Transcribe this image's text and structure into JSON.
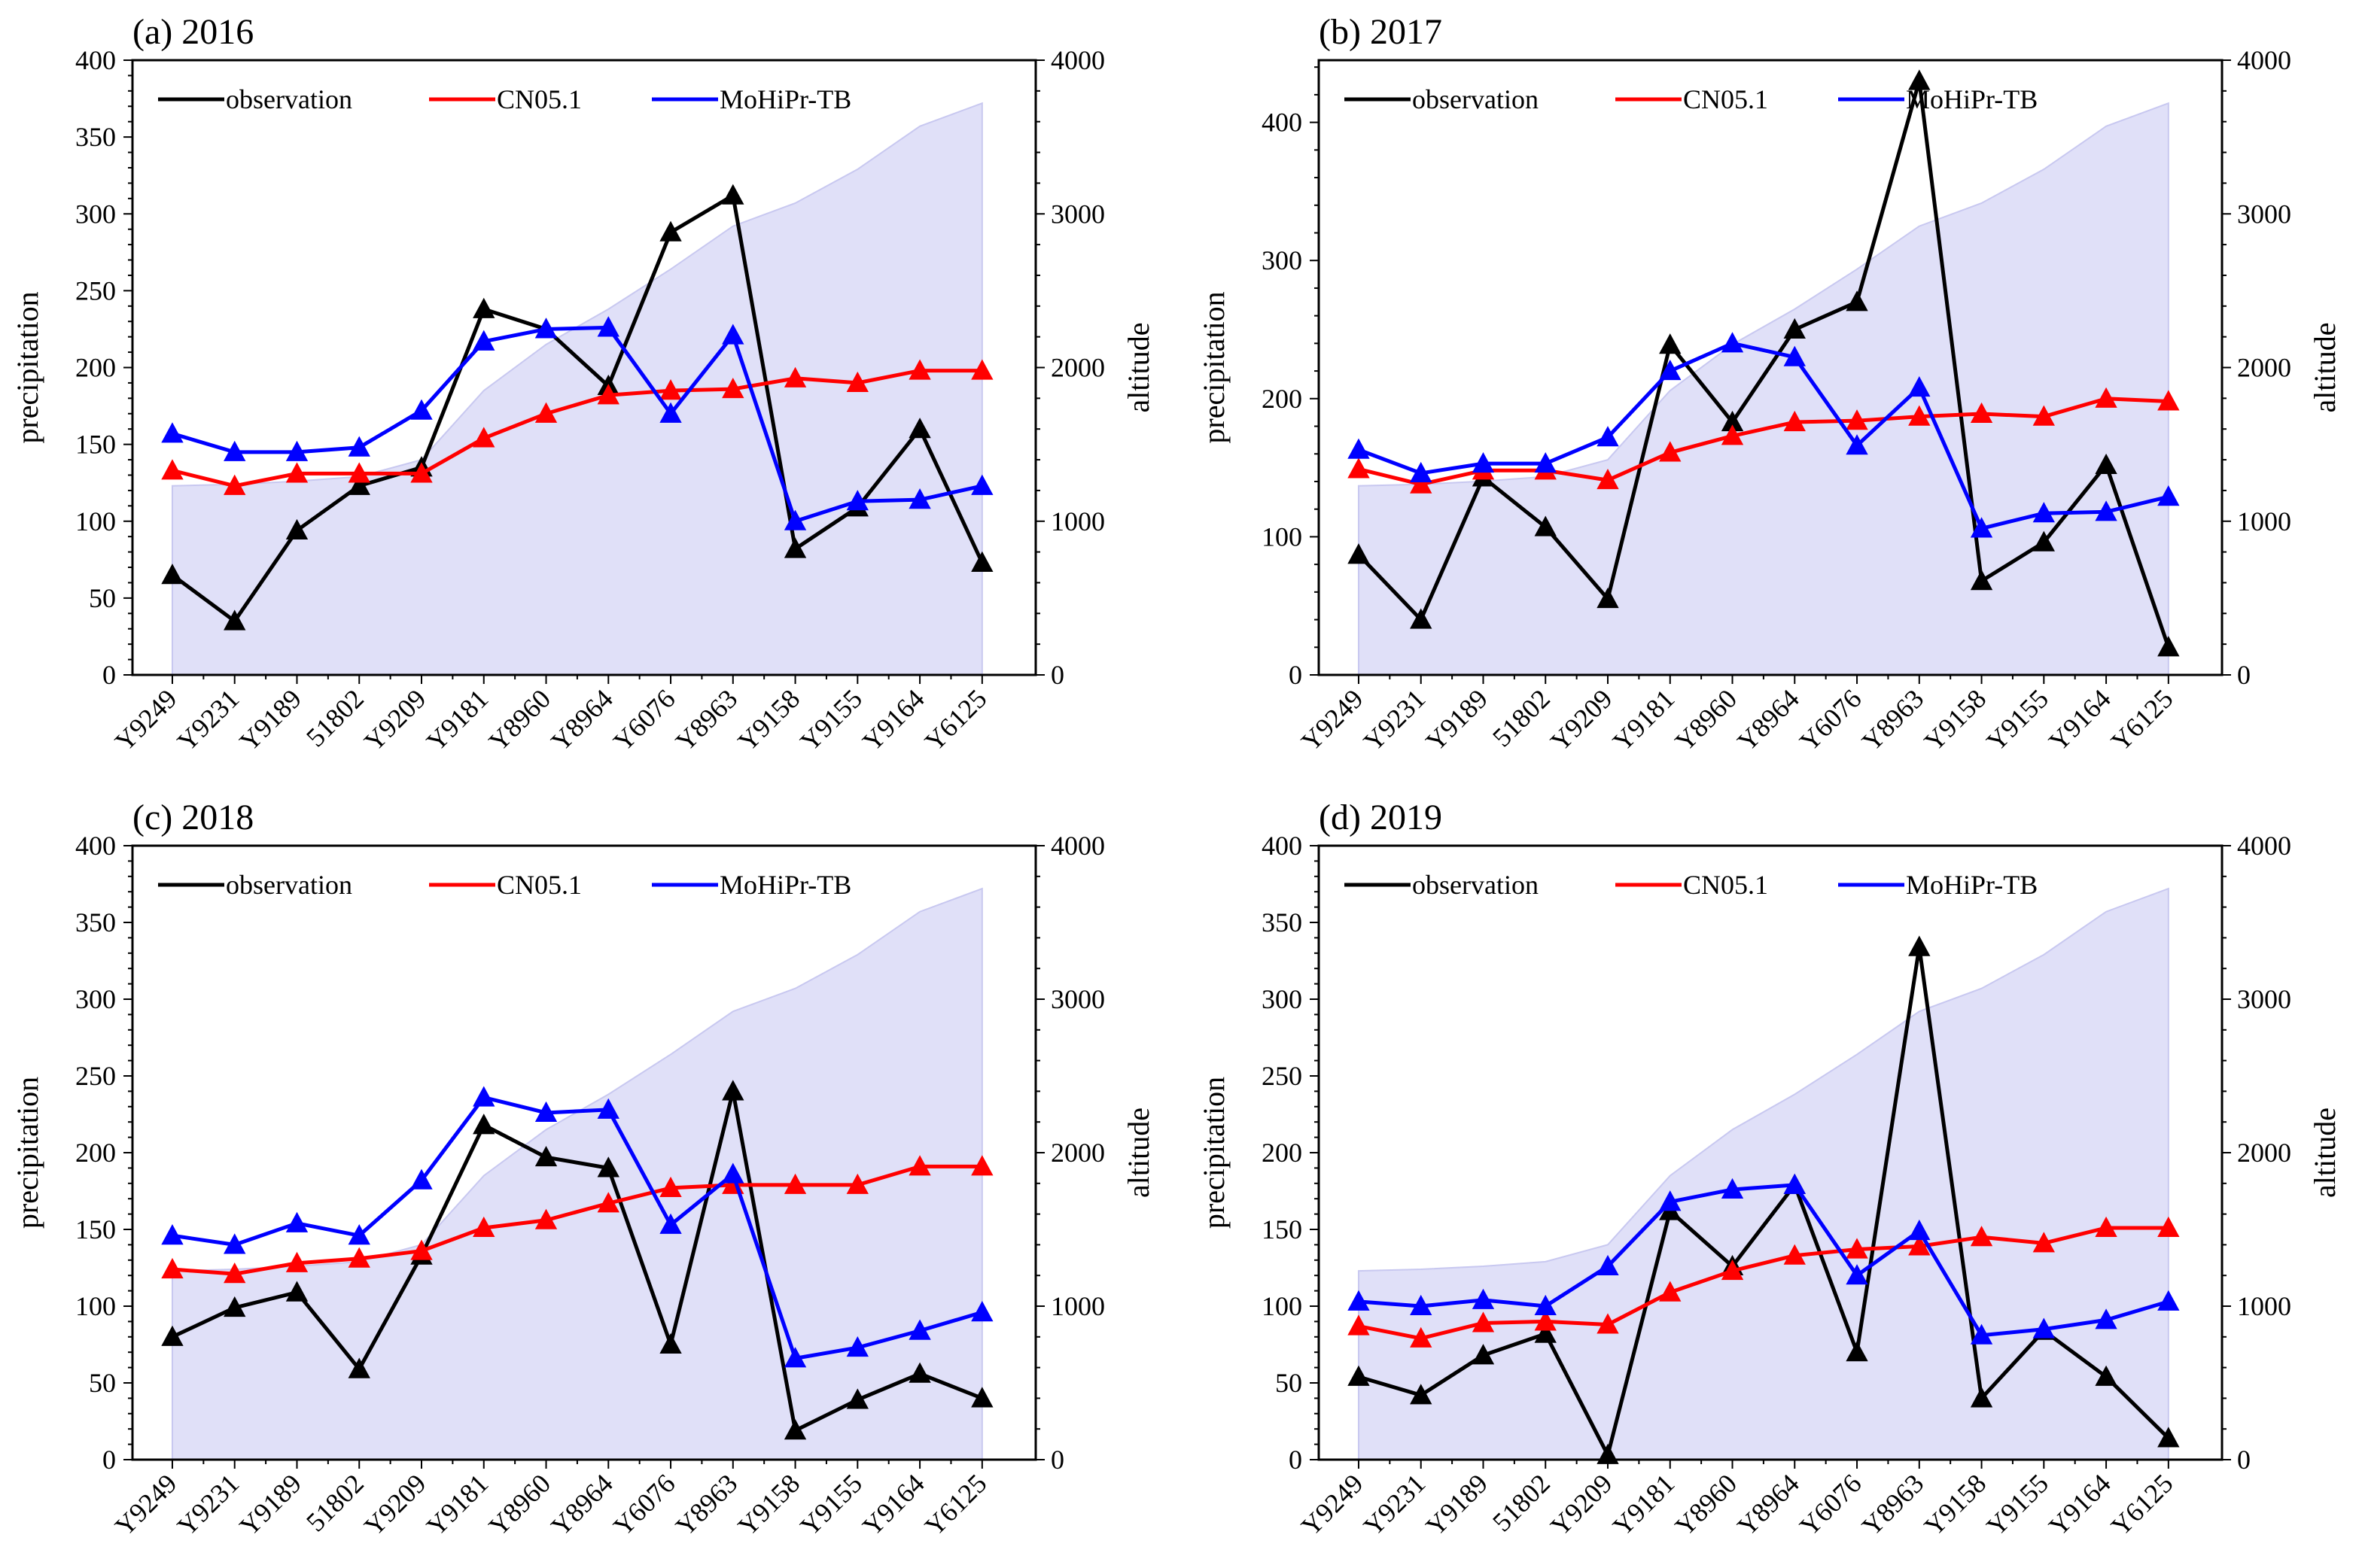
{
  "chart_data": [
    {
      "type": "line",
      "title": "(a) 2016",
      "ylabel": "precipitation",
      "y2label": "altitude",
      "ylim": [
        0,
        400
      ],
      "y2lim": [
        0,
        4000
      ],
      "yticks": [
        "0",
        "50",
        "100",
        "150",
        "200",
        "250",
        "300",
        "350",
        "400"
      ],
      "y2ticks": [
        "0",
        "1000",
        "2000",
        "3000",
        "4000"
      ],
      "categories": [
        "Y9249",
        "Y9231",
        "Y9189",
        "51802",
        "Y9209",
        "Y9181",
        "Y8960",
        "Y8964",
        "Y6076",
        "Y8963",
        "Y9158",
        "Y9155",
        "Y9164",
        "Y6125"
      ],
      "altitude": [
        1230,
        1240,
        1260,
        1290,
        1400,
        1850,
        2150,
        2380,
        2640,
        2920,
        3070,
        3290,
        3570,
        3720
      ],
      "altitude_color": "#e0e0f8",
      "series": [
        {
          "name": "observation",
          "color": "#000000",
          "values": [
            65,
            35,
            94,
            123,
            135,
            238,
            225,
            188,
            288,
            312,
            82,
            109,
            160,
            73
          ]
        },
        {
          "name": "CN05.1",
          "color": "#ff0000",
          "values": [
            133,
            123,
            131,
            131,
            131,
            154,
            170,
            182,
            185,
            186,
            193,
            190,
            198,
            198
          ]
        },
        {
          "name": "MoHiPr-TB",
          "color": "#0000ff",
          "values": [
            157,
            145,
            145,
            148,
            172,
            217,
            225,
            226,
            170,
            221,
            100,
            113,
            114,
            123
          ]
        }
      ]
    },
    {
      "type": "line",
      "title": "(b) 2017",
      "ylabel": "precipitation",
      "y2label": "altitude",
      "ylim": [
        0,
        445
      ],
      "y2lim": [
        0,
        4000
      ],
      "yticks": [
        "0",
        "100",
        "200",
        "300",
        "400"
      ],
      "y2ticks": [
        "0",
        "1000",
        "2000",
        "3000",
        "4000"
      ],
      "categories": [
        "Y9249",
        "Y9231",
        "Y9189",
        "51802",
        "Y9209",
        "Y9181",
        "Y8960",
        "Y8964",
        "Y6076",
        "Y8963",
        "Y9158",
        "Y9155",
        "Y9164",
        "Y6125"
      ],
      "altitude": [
        1230,
        1240,
        1260,
        1290,
        1400,
        1850,
        2150,
        2380,
        2640,
        2920,
        3070,
        3290,
        3570,
        3720
      ],
      "altitude_color": "#e0e0f8",
      "series": [
        {
          "name": "observation",
          "color": "#000000",
          "values": [
            87,
            40,
            143,
            107,
            55,
            239,
            183,
            250,
            270,
            430,
            68,
            96,
            152,
            20
          ]
        },
        {
          "name": "CN05.1",
          "color": "#ff0000",
          "values": [
            149,
            138,
            148,
            148,
            141,
            161,
            173,
            183,
            184,
            187,
            189,
            187,
            200,
            198
          ]
        },
        {
          "name": "MoHiPr-TB",
          "color": "#0000ff",
          "values": [
            163,
            146,
            153,
            153,
            172,
            220,
            240,
            230,
            166,
            208,
            106,
            117,
            118,
            129
          ]
        }
      ]
    },
    {
      "type": "line",
      "title": "(c) 2018",
      "ylabel": "precipitation",
      "y2label": "altitude",
      "ylim": [
        0,
        400
      ],
      "y2lim": [
        0,
        4000
      ],
      "yticks": [
        "0",
        "50",
        "100",
        "150",
        "200",
        "250",
        "300",
        "350",
        "400"
      ],
      "y2ticks": [
        "0",
        "1000",
        "2000",
        "3000",
        "4000"
      ],
      "categories": [
        "Y9249",
        "Y9231",
        "Y9189",
        "51802",
        "Y9209",
        "Y9181",
        "Y8960",
        "Y8964",
        "Y6076",
        "Y8963",
        "Y9158",
        "Y9155",
        "Y9164",
        "Y6125"
      ],
      "altitude": [
        1230,
        1240,
        1260,
        1290,
        1400,
        1850,
        2150,
        2380,
        2640,
        2920,
        3070,
        3290,
        3570,
        3720
      ],
      "altitude_color": "#e0e0f8",
      "series": [
        {
          "name": "observation",
          "color": "#000000",
          "values": [
            80,
            99,
            109,
            59,
            133,
            218,
            197,
            190,
            75,
            240,
            19,
            39,
            56,
            40
          ]
        },
        {
          "name": "CN05.1",
          "color": "#ff0000",
          "values": [
            124,
            121,
            128,
            131,
            136,
            151,
            156,
            167,
            177,
            179,
            179,
            179,
            191,
            191
          ]
        },
        {
          "name": "MoHiPr-TB",
          "color": "#0000ff",
          "values": [
            146,
            140,
            154,
            146,
            182,
            236,
            226,
            228,
            153,
            186,
            66,
            73,
            84,
            96
          ]
        }
      ]
    },
    {
      "type": "line",
      "title": "(d) 2019",
      "ylabel": "precipitation",
      "y2label": "altitude",
      "ylim": [
        0,
        400
      ],
      "y2lim": [
        0,
        4000
      ],
      "yticks": [
        "0",
        "50",
        "100",
        "150",
        "200",
        "250",
        "300",
        "350",
        "400"
      ],
      "y2ticks": [
        "0",
        "1000",
        "2000",
        "3000",
        "4000"
      ],
      "categories": [
        "Y9249",
        "Y9231",
        "Y9189",
        "51802",
        "Y9209",
        "Y9181",
        "Y8960",
        "Y8964",
        "Y6076",
        "Y8963",
        "Y9158",
        "Y9155",
        "Y9164",
        "Y6125"
      ],
      "altitude": [
        1230,
        1240,
        1260,
        1290,
        1400,
        1850,
        2150,
        2380,
        2640,
        2920,
        3070,
        3290,
        3570,
        3720
      ],
      "altitude_color": "#e0e0f8",
      "series": [
        {
          "name": "observation",
          "color": "#000000",
          "values": [
            54,
            42,
            68,
            82,
            3,
            162,
            126,
            179,
            70,
            334,
            40,
            84,
            54,
            14
          ]
        },
        {
          "name": "CN05.1",
          "color": "#ff0000",
          "values": [
            87,
            79,
            89,
            90,
            88,
            109,
            123,
            133,
            137,
            139,
            145,
            141,
            151,
            151
          ]
        },
        {
          "name": "MoHiPr-TB",
          "color": "#0000ff",
          "values": [
            103,
            100,
            104,
            100,
            126,
            168,
            176,
            179,
            120,
            149,
            81,
            85,
            91,
            103
          ]
        }
      ]
    }
  ]
}
